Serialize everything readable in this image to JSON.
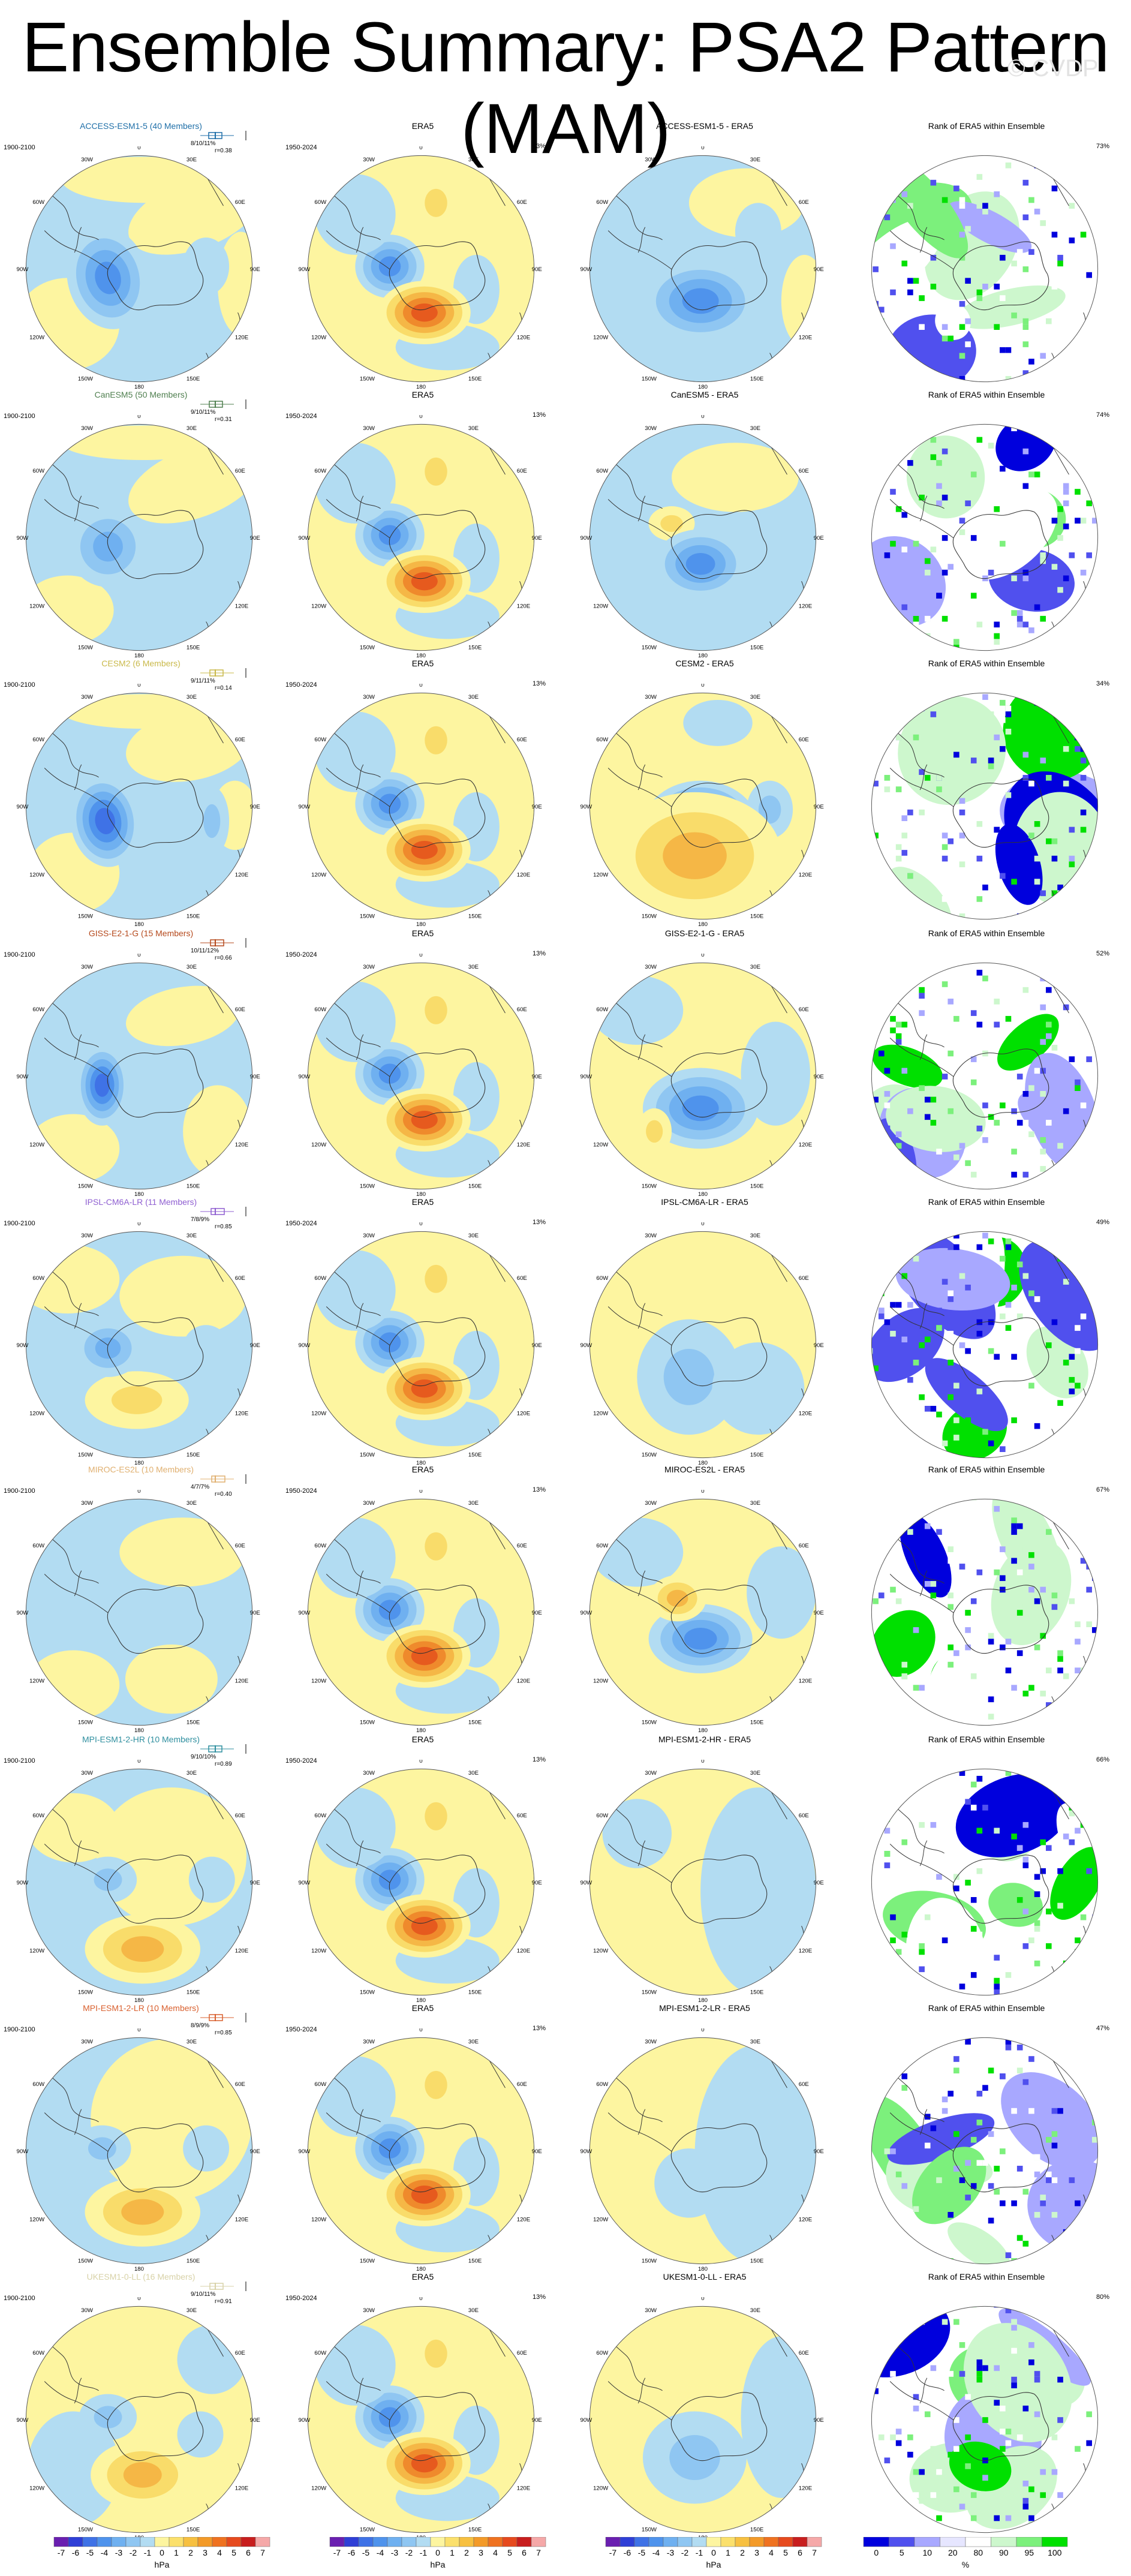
{
  "title": "Ensemble Summary: PSA2 Pattern (MAM)",
  "watermark": "© CVDP",
  "rows": [
    {
      "model": "ACCESS-ESM1-5 (40 Members)",
      "color": "#1f6fa8",
      "period": "1900-2100",
      "era_period": "1950-2024",
      "era_ratio": "13%",
      "stats": [
        "8/10/11%",
        "r=0.38"
      ],
      "diff_title": "ACCESS-ESM1-5 - ERA5",
      "rank_pct": "73%",
      "rank_title": "Rank of ERA5 within Ensemble",
      "variant": 0
    },
    {
      "model": "CanESM5 (50 Members)",
      "color": "#4f7f4f",
      "period": "1900-2100",
      "era_period": "1950-2024",
      "era_ratio": "13%",
      "stats": [
        "9/10/11%",
        "r=0.31"
      ],
      "diff_title": "CanESM5 - ERA5",
      "rank_pct": "74%",
      "rank_title": "Rank of ERA5 within Ensemble",
      "variant": 1
    },
    {
      "model": "CESM2 (6 Members)",
      "color": "#c9b94a",
      "period": "1900-2100",
      "era_period": "1950-2024",
      "era_ratio": "13%",
      "stats": [
        "9/11/11%",
        "r=0.14"
      ],
      "diff_title": "CESM2 - ERA5",
      "rank_pct": "34%",
      "rank_title": "Rank of ERA5 within Ensemble",
      "variant": 2
    },
    {
      "model": "GISS-E2-1-G (15 Members)",
      "color": "#b5491c",
      "period": "1900-2100",
      "era_period": "1950-2024",
      "era_ratio": "13%",
      "stats": [
        "10/11/12%",
        "r=0.66"
      ],
      "diff_title": "GISS-E2-1-G - ERA5",
      "rank_pct": "52%",
      "rank_title": "Rank of ERA5 within Ensemble",
      "variant": 3
    },
    {
      "model": "IPSL-CM6A-LR (11 Members)",
      "color": "#8f5fd1",
      "period": "1900-2100",
      "era_period": "1950-2024",
      "era_ratio": "13%",
      "stats": [
        "7/8/9%",
        "r=0.85"
      ],
      "diff_title": "IPSL-CM6A-LR - ERA5",
      "rank_pct": "49%",
      "rank_title": "Rank of ERA5 within Ensemble",
      "variant": 4
    },
    {
      "model": "MIROC-ES2L (10 Members)",
      "color": "#e0b070",
      "period": "1900-2100",
      "era_period": "1950-2024",
      "era_ratio": "13%",
      "stats": [
        "4/7/7%",
        "r=0.40"
      ],
      "diff_title": "MIROC-ES2L - ERA5",
      "rank_pct": "67%",
      "rank_title": "Rank of ERA5 within Ensemble",
      "variant": 5
    },
    {
      "model": "MPI-ESM1-2-HR (10 Members)",
      "color": "#2f8f9f",
      "period": "1900-2100",
      "era_period": "1950-2024",
      "era_ratio": "13%",
      "stats": [
        "9/10/10%",
        "r=0.89"
      ],
      "diff_title": "MPI-ESM1-2-HR - ERA5",
      "rank_pct": "66%",
      "rank_title": "Rank of ERA5 within Ensemble",
      "variant": 6
    },
    {
      "model": "MPI-ESM1-2-LR (10 Members)",
      "color": "#d9602f",
      "period": "1900-2100",
      "era_period": "1950-2024",
      "era_ratio": "13%",
      "stats": [
        "8/9/9%",
        "r=0.85"
      ],
      "diff_title": "MPI-ESM1-2-LR - ERA5",
      "rank_pct": "47%",
      "rank_title": "Rank of ERA5 within Ensemble",
      "variant": 7
    },
    {
      "model": "UKESM1-0-LL (16 Members)",
      "color": "#d8d2a8",
      "period": "1900-2100",
      "era_period": "1950-2024",
      "era_ratio": "13%",
      "stats": [
        "9/10/11%",
        "r=0.91"
      ],
      "diff_title": "UKESM1-0-LL - ERA5",
      "rank_pct": "80%",
      "rank_title": "Rank of ERA5 within Ensemble",
      "variant": 8
    }
  ],
  "era_title": "ERA5",
  "lon_labels": [
    "0",
    "30W",
    "30E",
    "60W",
    "60E",
    "90W",
    "90E",
    "120W",
    "120E",
    "150W",
    "150E",
    "180"
  ],
  "colorbar": {
    "labels": [
      "-7",
      "-6",
      "-5",
      "-4",
      "-3",
      "-2",
      "-1",
      "0",
      "1",
      "2",
      "3",
      "4",
      "5",
      "6",
      "7"
    ],
    "units": "hPa",
    "colors": [
      "#6a1fb0",
      "#2f3fd6",
      "#3f72e6",
      "#4f93ec",
      "#6fb0f0",
      "#8fc6f2",
      "#b2dcf2",
      "#fdf5a0",
      "#fbe06c",
      "#f7c040",
      "#f39a28",
      "#ef7220",
      "#e64a1e",
      "#c81e1e",
      "#f5a8a8"
    ]
  },
  "rank_colorbar": {
    "labels": [
      "0",
      "5",
      "10",
      "20",
      "80",
      "90",
      "95",
      "100"
    ],
    "units": "%",
    "colors": [
      "#0000dd",
      "#5050ee",
      "#a8a8ff",
      "#e6e6ff",
      "#ffffff",
      "#cdf7cd",
      "#7cf07c",
      "#00e000"
    ]
  }
}
